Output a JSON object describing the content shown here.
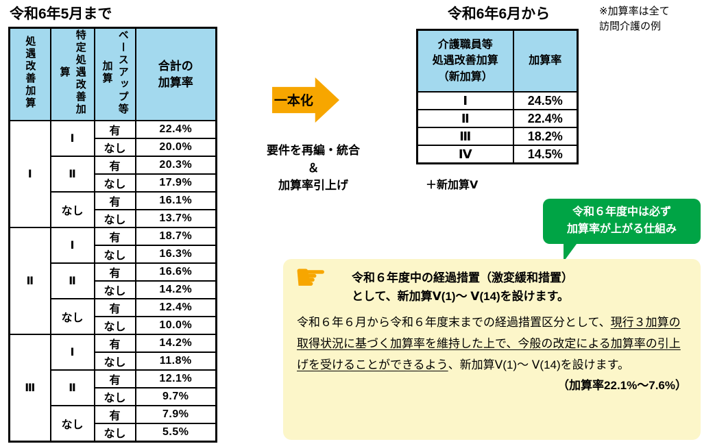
{
  "colors": {
    "header_blue": "#A3D9EE",
    "arrow_orange": "#F7A600",
    "bubble_green": "#00A445",
    "info_yellow": "#FCF6C9"
  },
  "left_table": {
    "title": "令和6年5月まで",
    "headers": {
      "treatment_improvement": "処遇改善加算",
      "specific_treatment_improvement": "特定処遇改善加算",
      "base_up": "ベースアップ等加算",
      "total_rate": "合計の\n加算率"
    },
    "rows": [
      {
        "c1": "Ⅰ",
        "c2": "Ⅰ",
        "c3": "有",
        "rate": "22.4%"
      },
      {
        "c3": "なし",
        "rate": "20.0%"
      },
      {
        "c2": "Ⅱ",
        "c3": "有",
        "rate": "20.3%"
      },
      {
        "c3": "なし",
        "rate": "17.9%"
      },
      {
        "c2": "なし",
        "c3": "有",
        "rate": "16.1%"
      },
      {
        "c3": "なし",
        "rate": "13.7%"
      },
      {
        "c1": "Ⅱ",
        "c2": "Ⅰ",
        "c3": "有",
        "rate": "18.7%"
      },
      {
        "c3": "なし",
        "rate": "16.3%"
      },
      {
        "c2": "Ⅱ",
        "c3": "有",
        "rate": "16.6%"
      },
      {
        "c3": "なし",
        "rate": "14.2%"
      },
      {
        "c2": "なし",
        "c3": "有",
        "rate": "12.4%"
      },
      {
        "c3": "なし",
        "rate": "10.0%"
      },
      {
        "c1": "Ⅲ",
        "c2": "Ⅰ",
        "c3": "有",
        "rate": "14.2%"
      },
      {
        "c3": "なし",
        "rate": "11.8%"
      },
      {
        "c2": "Ⅱ",
        "c3": "有",
        "rate": "12.1%"
      },
      {
        "c3": "なし",
        "rate": "9.7%"
      },
      {
        "c2": "なし",
        "c3": "有",
        "rate": "7.9%"
      },
      {
        "c3": "なし",
        "rate": "5.5%"
      }
    ]
  },
  "transform": {
    "arrow_label": "一本化",
    "caption": "要件を再編・統合\n＆\n加算率引上げ"
  },
  "right_table": {
    "title": "令和6年6月から",
    "headers": {
      "new_addition": "介護職員等\n処遇改善加算\n（新加算）",
      "rate": "加算率"
    },
    "rows": [
      {
        "grade": "Ⅰ",
        "rate": "24.5%"
      },
      {
        "grade": "Ⅱ",
        "rate": "22.4%"
      },
      {
        "grade": "Ⅲ",
        "rate": "18.2%"
      },
      {
        "grade": "Ⅳ",
        "rate": "14.5%"
      }
    ],
    "footnote": "＋新加算Ⅴ"
  },
  "top_note": "※加算率は全て\n訪問介護の例",
  "callout_bubble": "令和６年度中は必ず\n加算率が上がる仕組み",
  "info_box": {
    "hand_icon": "pointing-hand-icon",
    "hand_glyph": "☛",
    "heading": "令和６年度中の経過措置（激変緩和措置）\nとして、新加算Ⅴ(1)～ Ⅴ(14)を設けます。",
    "body_pre": "令和６年６月から令和６年度末までの経過措置区分として、",
    "body_underlined": "現行３加算の取得状況に基づく加算率を維持した上で、今般の改定による加算率の引上げを受けることができるよう",
    "body_post": "、新加算Ⅴ(1)～ Ⅴ(14)を設けます。",
    "rate_range": "（加算率22.1%～7.6%）"
  }
}
